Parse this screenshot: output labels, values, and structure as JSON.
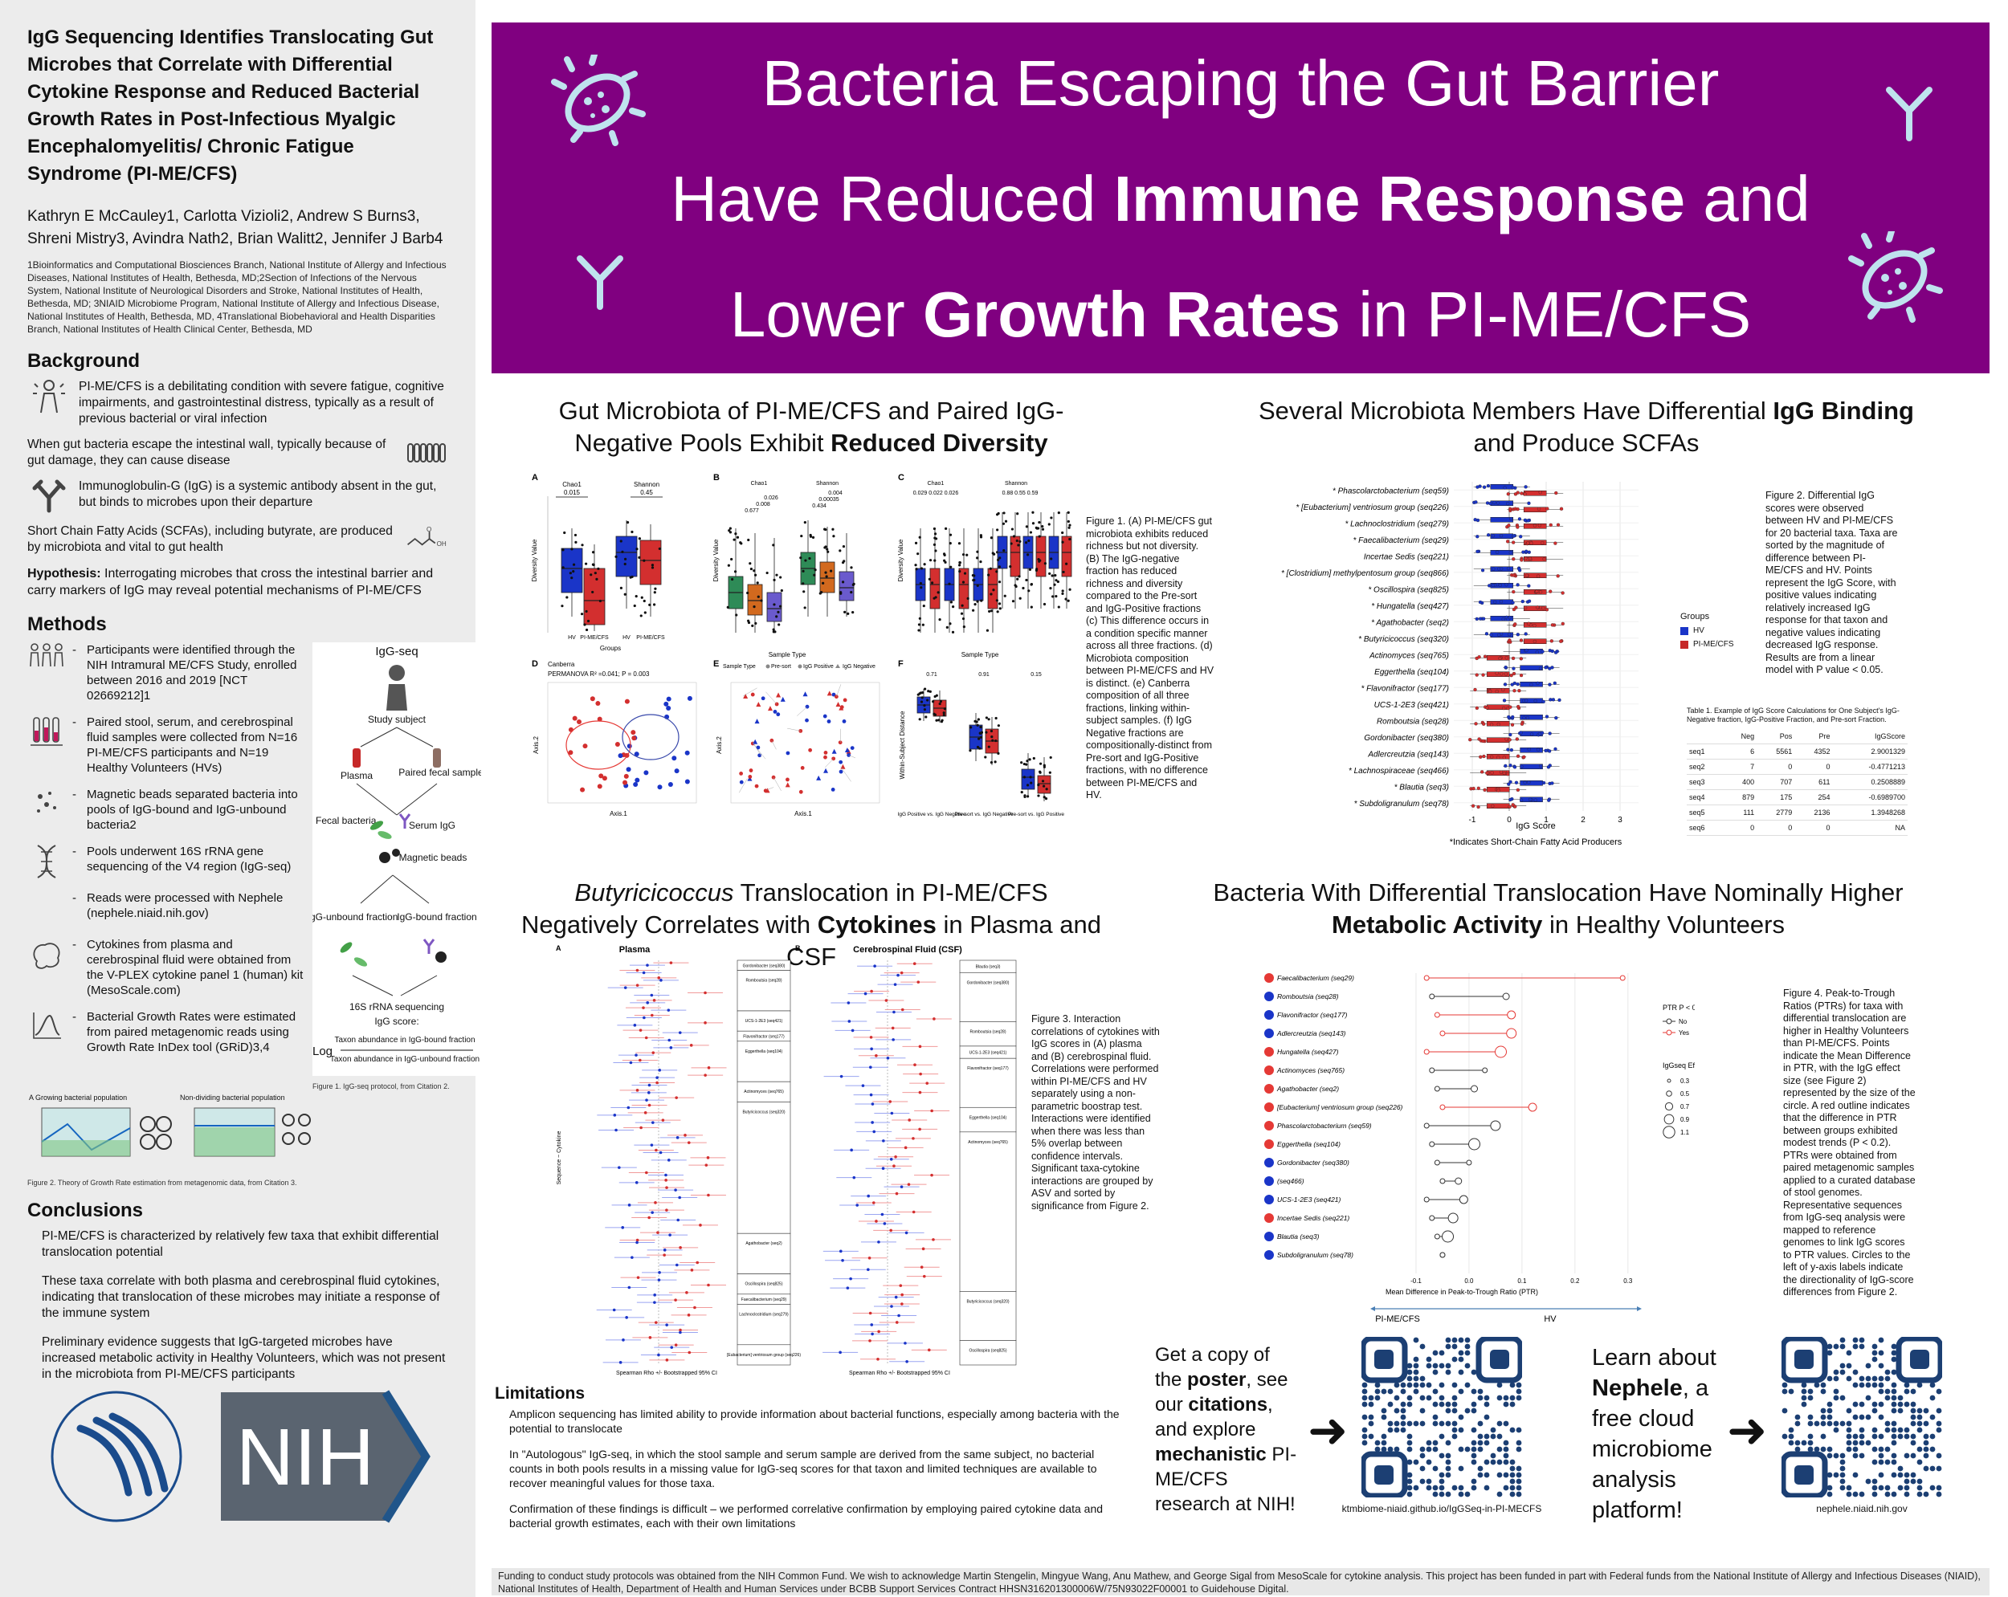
{
  "left": {
    "title": "IgG Sequencing Identifies Translocating Gut Microbes that Correlate with Differential Cytokine Response and Reduced Bacterial Growth Rates in Post-Infectious Myalgic Encephalomyelitis/ Chronic Fatigue Syndrome (PI-ME/CFS)",
    "authors": "Kathryn E McCauley1, Carlotta Vizioli2, Andrew S Burns3, Shreni Mistry3, Avindra Nath2, Brian Walitt2, Jennifer J Barb4",
    "affiliations": "1Bioinformatics and Computational Biosciences Branch, National Institute of Allergy and Infectious Diseases, National Institutes of Health, Bethesda, MD;2Section of Infections of the Nervous System, National Institute of Neurological Disorders and Stroke, National Institutes of Health, Bethesda, MD; 3NIAID Microbiome Program, National Institute of Allergy and Infectious Disease, National Institutes of Health, Bethesda, MD, 4Translational Biobehavioral and Health Disparities Branch, National Institutes of Health Clinical Center, Bethesda, MD",
    "background_heading": "Background",
    "background": [
      "PI-ME/CFS is a debilitating condition with severe fatigue, cognitive impairments, and gastrointestinal distress, typically as a result of previous bacterial or viral infection",
      "When gut bacteria escape the intestinal wall, typically because of gut damage, they can cause disease",
      "Immunoglobulin-G (IgG) is a systemic antibody absent in the gut, but binds to microbes upon their departure",
      "Short Chain Fatty Acids (SCFAs), including butyrate, are produced by microbiota and vital to gut health"
    ],
    "hypothesis_label": "Hypothesis:",
    "hypothesis": " Interrogating microbes that cross the intestinal barrier and carry markers of IgG may reveal potential mechanisms of PI-ME/CFS",
    "methods_heading": "Methods",
    "methods": [
      "Participants were identified through the NIH Intramural ME/CFS Study, enrolled between 2016 and 2019 [NCT 02669212]1",
      "Paired stool, serum, and cerebrospinal fluid samples were collected from N=16 PI-ME/CFS participants and N=19 Healthy Volunteers (HVs)",
      "Magnetic beads separated bacteria into pools of IgG-bound and IgG-unbound bacteria2",
      "Pools underwent 16S rRNA gene sequencing of the V4 region (IgG-seq)",
      "Reads were processed with Nephele (nephele.niaid.nih.gov)",
      "Cytokines from plasma and cerebrospinal fluid were obtained from the V-PLEX cytokine panel 1 (human) kit (MesoScale.com)",
      "Bacterial Growth Rates were estimated from paired metagenomic reads using Growth Rate InDex tool (GRiD)3,4"
    ],
    "igseq": {
      "title": "IgG-seq",
      "study_subject": "Study subject",
      "plasma": "Plasma",
      "fecal_sample": "Paired fecal sample",
      "fecal_bacteria": "Fecal bacteria",
      "serum_igg": "Serum IgG",
      "magnetic_beads": "Magnetic beads",
      "unbound": "IgG-unbound fraction",
      "bound": "IgG-bound fraction",
      "sequencing": "16S rRNA sequencing",
      "score": "IgG score:",
      "log": "Log",
      "num": "Taxon abundance in IgG-bound fraction",
      "den": "Taxon abundance in IgG-unbound fraction",
      "caption": "Figure 1. IgG-seq protocol, from Citation 2."
    },
    "growth_fig": {
      "label_a": "A  Growing bacterial population",
      "label_b": "Non-dividing bacterial population",
      "caption": "Figure 2. Theory of Growth Rate estimation from metagenomic data, from Citation 3."
    },
    "conclusions_heading": "Conclusions",
    "conclusions": [
      "PI-ME/CFS is characterized by relatively few taxa that exhibit differential translocation potential",
      "These taxa correlate with both plasma and cerebrospinal fluid cytokines, indicating that translocation of these microbes may initiate a response of the immune system",
      "Preliminary evidence suggests that IgG-targeted microbes have increased metabolic activity in Healthy Volunteers, which was not present in the microbiota from PI-ME/CFS participants"
    ],
    "nih_logo_text": "NIH"
  },
  "banner": {
    "line1": "Bacteria Escaping the Gut Barrier",
    "line2_a": "Have Reduced ",
    "line2_b": "Immune Response",
    "line2_c": " and",
    "line3_a": "Lower ",
    "line3_b": "Growth Rates",
    "line3_c": " in PI-ME/CFS",
    "colors": {
      "purple": "#800080",
      "icon": "#bfe3ee"
    }
  },
  "panel1": {
    "title_a": "Gut Microbiota of PI-ME/CFS and Paired IgG-Negative Pools Exhibit ",
    "title_b": "Reduced Diversity",
    "caption": "Figure 1. (A) PI-ME/CFS gut microbiota exhibits reduced richness but not diversity. (B) The IgG-negative fraction has reduced richness and diversity compared to the Pre-sort and IgG-Positive fractions (c) This difference occurs in a condition specific manner across all three fractions. (d) Microbiota composition between PI-ME/CFS and HV is distinct. (e) Canberra composition of all three fractions, linking within-subject samples. (f) IgG Negative fractions are compositionally-distinct from Pre-sort and IgG-Positive fractions, with no difference between PI-ME/CFS and HV.",
    "labels": {
      "A": "A",
      "B": "B",
      "C": "C",
      "D": "D",
      "E": "E",
      "F": "F",
      "chao1": "Chao1",
      "shannon": "Shannon",
      "diversity": "Diversity Value",
      "groups": "Groups",
      "sample_type": "Sample Type",
      "hv": "HV",
      "pimecfs": "PI-ME/CFS",
      "presort": "Pre-sort",
      "iggpos": "IgG Positive",
      "iggneg": "IgG Negative",
      "canberra": "Canberra",
      "permanova": "PERMANOVA R² =0.041; P = 0.003",
      "axis1": "Axis.1",
      "axis2": "Axis.2",
      "wsd": "Within-Subject Distance",
      "f_x1": "IgG Positive vs. IgG Negative",
      "f_x2": "Pre-sort vs. IgG Negative",
      "f_x3": "Pre-sort vs. IgG Positive",
      "pA1": "0.015",
      "pA2": "0.45",
      "pB1": "0.026",
      "pB2": "0.008",
      "pB3": "0.677",
      "pB4": "0.004",
      "pB5": "0.00035",
      "pB6": "0.434",
      "pC": "0.029  0.022  0.026",
      "pC2": "0.88  0.55  0.59",
      "pF1": "0.71",
      "pF2": "0.91",
      "pF3": "0.15",
      "legend_sample": "Sample Type"
    }
  },
  "panel2": {
    "title_a": "Several Microbiota Members Have Differential ",
    "title_b": "IgG Binding",
    "title_c": " and Produce SCFAs",
    "taxa": [
      "* Phascolarctobacterium (seq59)",
      "* [Eubacterium] ventriosum group (seq226)",
      "* Lachnoclostridium (seq279)",
      "* Faecalibacterium (seq29)",
      "Incertae Sedis (seq221)",
      "* [Clostridium] methylpentosum group (seq866)",
      "* Oscillospira (seq825)",
      "* Hungatella (seq427)",
      "* Agathobacter (seq2)",
      "* Butyricicoccus (seq320)",
      "Actinomyces (seq765)",
      "Eggerthella (seq104)",
      "* Flavonifractor (seq177)",
      "UCS-1-2E3 (seq421)",
      "Romboutsia (seq28)",
      "Gordonibacter (seq380)",
      "Adlercreutzia (seq143)",
      "* Lachnospiraceae (seq466)",
      "* Blautia (seq3)",
      "* Subdoligranulum (seq78)"
    ],
    "ticks": [
      "-1",
      "0",
      "1",
      "2",
      "3"
    ],
    "xlabel": "IgG Score",
    "footnote": "*Indicates Short-Chain Fatty Acid Producers",
    "legend_title": "Groups",
    "legend_hv": "HV",
    "legend_pi": "PI-ME/CFS",
    "caption": "Figure 2. Differential IgG scores were observed between HV and PI-ME/CFS for 20 bacterial taxa. Taxa are sorted by the magnitude of difference between PI-ME/CFS and HV. Points represent the IgG Score, with positive values indicating relatively increased IgG response for that taxon and negative values indicating decreased IgG response. Results are from a linear model with P value < 0.05.",
    "table_title": "Table 1. Example of IgG Score Calculations for One Subject's IgG-Negative fraction, IgG-Positive Fraction, and Pre-sort Fraction.",
    "table_head": [
      "",
      "Neg",
      "Pos",
      "Pre",
      "IgGScore"
    ],
    "table_rows": [
      [
        "seq1",
        "6",
        "5561",
        "4352",
        "2.9001329"
      ],
      [
        "seq2",
        "7",
        "0",
        "0",
        "-0.4771213"
      ],
      [
        "seq3",
        "400",
        "707",
        "611",
        "0.2508889"
      ],
      [
        "seq4",
        "879",
        "175",
        "254",
        "-0.6989700"
      ],
      [
        "seq5",
        "111",
        "2779",
        "2136",
        "1.3948268"
      ],
      [
        "seq6",
        "0",
        "0",
        "0",
        "NA"
      ]
    ]
  },
  "panel3": {
    "title_a": "Butyricicoccus",
    "title_b": " Translocation in PI-ME/CFS Negatively Correlates with ",
    "title_c": "Cytokines",
    "title_d": " in Plasma and CSF",
    "plasma": "Plasma",
    "csf": "Cerebrospinal Fluid (CSF)",
    "label_a": "A",
    "label_b": "B",
    "ylabel": "Sequence ~ Cytokine",
    "xlabel": "Spearman Rho +/- Bootstrapped 95% CI",
    "plasma_groups": [
      "Gordonibacter (seq380)",
      "Romboutsia (seq28)",
      "UCS-1-2E3 (seq421)",
      "Flavonifractor (seq177)",
      "Eggerthella (seq104)",
      "Actinomyces (seq765)",
      "Butyricicoccus (seq320)",
      "Agathobacter (seq2)",
      "Oscillospira (seq825)",
      "Faecalibacterium (seq29)",
      "Lachnoclostridium (seq279)",
      "[Eubacterium] ventriosum group (seq226)"
    ],
    "csf_groups": [
      "Blautia (seq3)",
      "Gordonibacter (seq380)",
      "Romboutsia (seq28)",
      "UCS-1-2E3 (seq421)",
      "Flavonifractor (seq177)",
      "Eggerthella (seq104)",
      "Actinomyces (seq765)",
      "Butyricicoccus (seq320)",
      "Oscillospira (seq825)"
    ],
    "caption": "Figure 3. Interaction correlations of cytokines with IgG scores in (A) plasma and (B) cerebrospinal fluid. Correlations were performed within PI-ME/CFS and HV separately using a non-parametric boostrap test. Interactions were identified when there was less than 5% overlap between confidence intervals. Significant taxa-cytokine interactions are grouped by ASV and sorted by significance from Figure 2."
  },
  "panel4": {
    "title_a": "Bacteria With Differential Translocation Have Nominally Higher ",
    "title_b": "Metabolic Activity",
    "title_c": " in Healthy Volunteers",
    "taxa": [
      "Faecalibacterium (seq29)",
      "Romboutsia (seq28)",
      "Flavonifractor (seq177)",
      "Adlercreutzia (seq143)",
      "Hungatella (seq427)",
      "Actinomyces (seq765)",
      "Agathobacter (seq2)",
      "[Eubacterium] ventriosum group (seq226)",
      "Phascolarctobacterium (seq59)",
      "Eggerthella (seq104)",
      "Gordonibacter (seq380)",
      "(seq466)",
      "UCS-1-2E3 (seq421)",
      "Incertae Sedis (seq221)",
      "Blautia (seq3)",
      "Subdoligranulum (seq78)"
    ],
    "ticks": [
      "-0.1",
      "0.0",
      "0.1",
      "0.2",
      "0.3"
    ],
    "xlabel": "Mean Difference in Peak-to-Trough Ratio (PTR)",
    "left_group": "PI-ME/CFS",
    "right_group": "HV",
    "legend_ptr": "PTR P < 0.2",
    "legend_no": "No",
    "legend_yes": "Yes",
    "legend_size": "IgGseq Effect Size (abs)",
    "sizes": [
      "0.3",
      "0.5",
      "0.7",
      "0.9",
      "1.1"
    ],
    "caption": "Figure 4. Peak-to-Trough Ratios (PTRs) for taxa with differential translocation are higher in Healthy Volunteers than PI-ME/CFS. Points indicate the Mean Difference in PTR, with the IgG effect size (see Figure 2) represented by the size of the circle. A red outline indicates that the difference in PTR between groups exhibited modest trends (P < 0.2). PTRs were obtained from paired metagenomic samples applied to a curated database of stool genomes. Representative sequences from IgG-seq analysis were mapped to reference genomes to link IgG scores to PTR values. Circles to the left of y-axis labels indicate the directionality of IgG-score differences from Figure 2."
  },
  "limitations": {
    "heading": "Limitations",
    "items": [
      "Amplicon sequencing has limited ability to provide information about bacterial functions, especially among bacteria with the potential to translocate",
      "In \"Autologous\" IgG-seq, in which the stool sample and serum sample are derived from the same subject, no bacterial counts in both pools results in a missing value for IgG-seq scores for that taxon and limited techniques are available to recover meaningful values for those taxa.",
      "Confirmation of these findings is difficult – we performed correlative confirmation by employing paired cytokine data and bacterial growth estimates, each with their own limitations"
    ]
  },
  "qr": {
    "text1_a": "Get a copy of the ",
    "text1_b": "poster",
    "text1_c": ", see our ",
    "text1_d": "citations",
    "text1_e": ", and explore ",
    "text1_f": "mechanistic",
    "text1_g": " PI-ME/CFS research at NIH!",
    "url1": "ktmbiome-niaid.github.io/IgGSeq-in-PI-MECFS",
    "text2_a": "Learn about ",
    "text2_b": "Nephele",
    "text2_c": ", a free cloud microbiome analysis platform!",
    "url2": "nephele.niaid.nih.gov",
    "arrow": "➜"
  },
  "footer": "Funding to conduct study protocols was obtained from the NIH Common Fund. We wish to acknowledge Martin Stengelin, Mingyue Wang, Anu Mathew, and George Sigal from MesoScale for cytokine analysis. This project has been funded in part with Federal funds from the National Institute of Allergy and Infectious Diseases (NIAID), National Institutes of Health, Department of Health and Human Services under BCBB Support Services Contract HHSN316201300006W/75N93022F00001 to Guidehouse Digital."
}
